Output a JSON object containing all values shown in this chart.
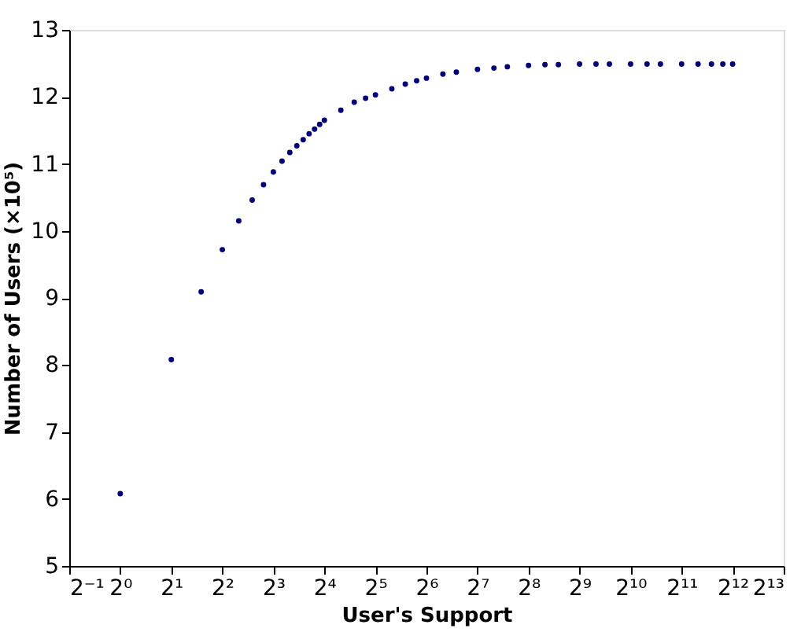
{
  "chart_data": {
    "type": "scatter",
    "xlabel": "User's Support",
    "ylabel": "Number of Users (×10⁵)",
    "log": "x",
    "marker": "circle",
    "grid": false,
    "xlim": [
      0.5,
      8192
    ],
    "ylim": [
      5,
      13
    ],
    "xticks": [
      {
        "value": 0.5,
        "label": "2⁻¹"
      },
      {
        "value": 1,
        "label": "2⁰"
      },
      {
        "value": 2,
        "label": "2¹"
      },
      {
        "value": 4,
        "label": "2²"
      },
      {
        "value": 8,
        "label": "2³"
      },
      {
        "value": 16,
        "label": "2⁴"
      },
      {
        "value": 32,
        "label": "2⁵"
      },
      {
        "value": 64,
        "label": "2⁶"
      },
      {
        "value": 128,
        "label": "2⁷"
      },
      {
        "value": 256,
        "label": "2⁸"
      },
      {
        "value": 512,
        "label": "2⁹"
      },
      {
        "value": 1024,
        "label": "2¹⁰"
      },
      {
        "value": 2048,
        "label": "2¹¹"
      },
      {
        "value": 4096,
        "label": "2¹²"
      },
      {
        "value": 8192,
        "label": "2¹³"
      }
    ],
    "yticks": [
      5,
      6,
      7,
      8,
      9,
      10,
      11,
      12,
      13
    ],
    "series": [
      {
        "color": "#000080",
        "x": [
          1,
          2,
          3,
          4,
          5,
          6,
          7,
          8,
          9,
          10,
          11,
          12,
          13,
          14,
          15,
          16,
          20,
          24,
          28,
          32,
          40,
          48,
          56,
          64,
          80,
          96,
          128,
          160,
          192,
          256,
          320,
          384,
          512,
          640,
          768,
          1024,
          1280,
          1536,
          2048,
          2560,
          3072,
          3584,
          4096
        ],
        "values": [
          6.08,
          8.08,
          9.09,
          9.72,
          10.15,
          10.46,
          10.69,
          10.88,
          11.04,
          11.17,
          11.27,
          11.36,
          11.45,
          11.52,
          11.59,
          11.65,
          11.8,
          11.92,
          11.98,
          12.03,
          12.12,
          12.19,
          12.24,
          12.28,
          12.34,
          12.37,
          12.41,
          12.43,
          12.45,
          12.47,
          12.48,
          12.48,
          12.49,
          12.49,
          12.49,
          12.49,
          12.49,
          12.49,
          12.49,
          12.49,
          12.49,
          12.49,
          12.49
        ]
      }
    ]
  }
}
